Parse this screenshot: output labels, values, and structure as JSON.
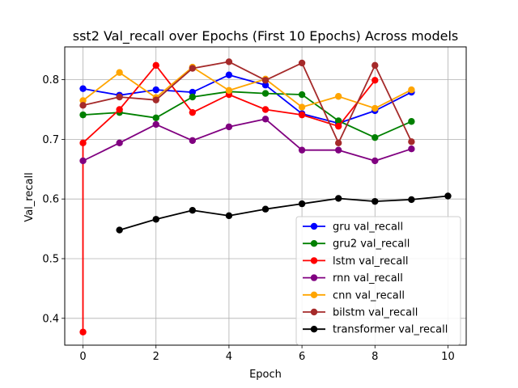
{
  "chart_data": {
    "type": "line",
    "title": "sst2 Val_recall over Epochs (First 10 Epochs) Across models",
    "xlabel": "Epoch",
    "ylabel": "Val_recall",
    "xlim": [
      -0.5,
      10.5
    ],
    "ylim": [
      0.355,
      0.855
    ],
    "xticks": [
      0,
      2,
      4,
      6,
      8,
      10
    ],
    "yticks": [
      0.4,
      0.5,
      0.6,
      0.7,
      0.8
    ],
    "grid": true,
    "legend_position": "lower-right",
    "series": [
      {
        "name": "gru val_recall",
        "color": "#0000ff",
        "x": [
          0,
          1,
          2,
          3,
          4,
          5,
          6,
          7,
          8,
          9
        ],
        "values": [
          0.785,
          0.774,
          0.783,
          0.779,
          0.808,
          0.791,
          0.743,
          0.727,
          0.748,
          0.779
        ]
      },
      {
        "name": "gru2 val_recall",
        "color": "#008000",
        "x": [
          0,
          1,
          2,
          3,
          4,
          5,
          6,
          7,
          8,
          9
        ],
        "values": [
          0.741,
          0.745,
          0.736,
          0.771,
          0.78,
          0.777,
          0.775,
          0.731,
          0.703,
          0.73
        ]
      },
      {
        "name": "lstm val_recall",
        "color": "#ff0000",
        "x": [
          0,
          0,
          1,
          2,
          3,
          4,
          5,
          6,
          7,
          8
        ],
        "values": [
          0.377,
          0.694,
          0.75,
          0.824,
          0.745,
          0.775,
          0.75,
          0.741,
          0.722,
          0.799
        ]
      },
      {
        "name": "rnn val_recall",
        "color": "#800080",
        "x": [
          0,
          1,
          2,
          3,
          4,
          5,
          6,
          7,
          8,
          9
        ],
        "values": [
          0.664,
          0.694,
          0.725,
          0.698,
          0.721,
          0.734,
          0.682,
          0.682,
          0.664,
          0.684
        ]
      },
      {
        "name": "cnn val_recall",
        "color": "#ffa500",
        "x": [
          0,
          1,
          2,
          3,
          4,
          5,
          6,
          7,
          8,
          9
        ],
        "values": [
          0.765,
          0.812,
          0.77,
          0.821,
          0.782,
          0.801,
          0.754,
          0.772,
          0.752,
          0.783
        ]
      },
      {
        "name": "bilstm val_recall",
        "color": "#a52a2a",
        "x": [
          0,
          1,
          2,
          3,
          4,
          5,
          6,
          7,
          8,
          9
        ],
        "values": [
          0.757,
          0.771,
          0.766,
          0.819,
          0.83,
          0.799,
          0.828,
          0.694,
          0.824,
          0.696
        ]
      },
      {
        "name": "transformer val_recall",
        "color": "#000000",
        "x": [
          1,
          2,
          3,
          4,
          5,
          6,
          7,
          8,
          9,
          10
        ],
        "values": [
          0.548,
          0.566,
          0.581,
          0.572,
          0.583,
          0.592,
          0.601,
          0.596,
          0.599,
          0.605
        ]
      }
    ]
  }
}
